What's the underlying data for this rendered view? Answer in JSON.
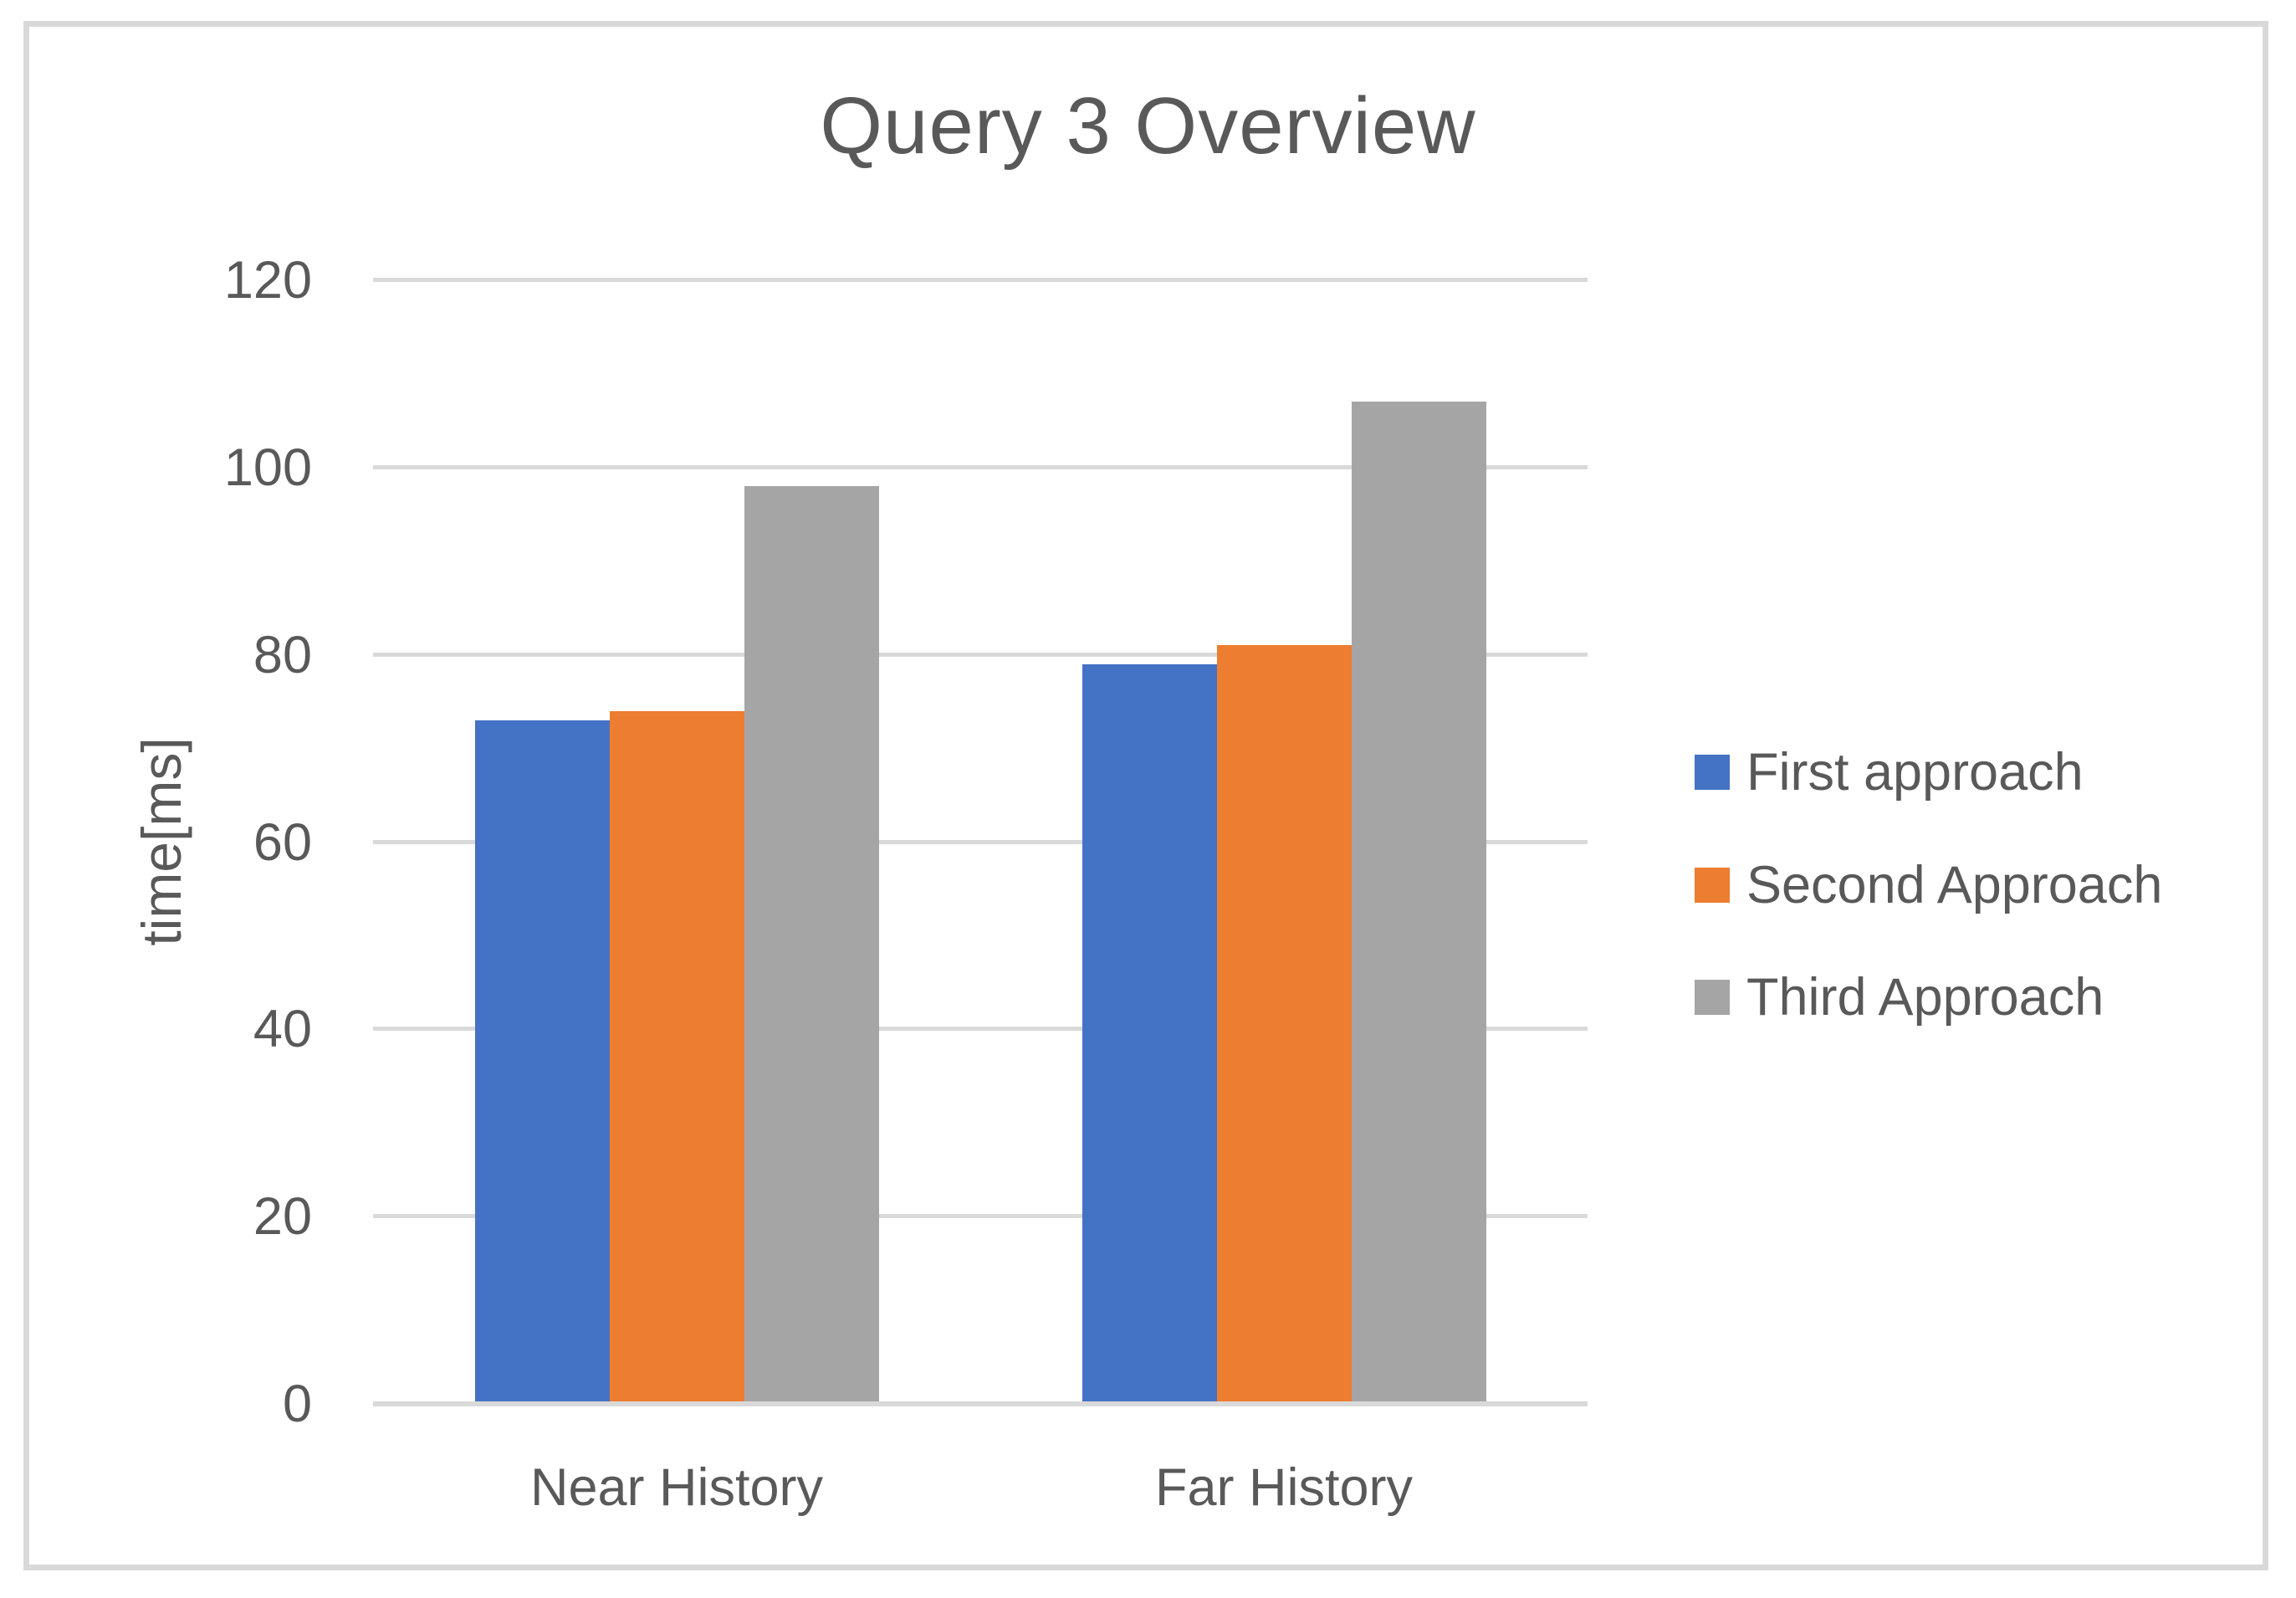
{
  "chart_data": {
    "type": "bar",
    "title": "Query 3 Overview",
    "xlabel": "",
    "ylabel": "time[ms]",
    "categories": [
      "Near History",
      "Far History"
    ],
    "series": [
      {
        "name": "First approach",
        "color": "#4472C4",
        "values": [
          73,
          79
        ]
      },
      {
        "name": "Second Approach",
        "color": "#ED7D31",
        "values": [
          74,
          81
        ]
      },
      {
        "name": "Third Approach",
        "color": "#A5A5A5",
        "values": [
          98,
          107
        ]
      }
    ],
    "ylim": [
      0,
      120
    ],
    "yticks": [
      0,
      20,
      40,
      60,
      80,
      100,
      120
    ],
    "grid": true,
    "legend_position": "right",
    "colors": {
      "text": "#595959",
      "gridline": "#D9D9D9",
      "frame_border": "#D9D9D9",
      "background": "#FFFFFF"
    }
  }
}
